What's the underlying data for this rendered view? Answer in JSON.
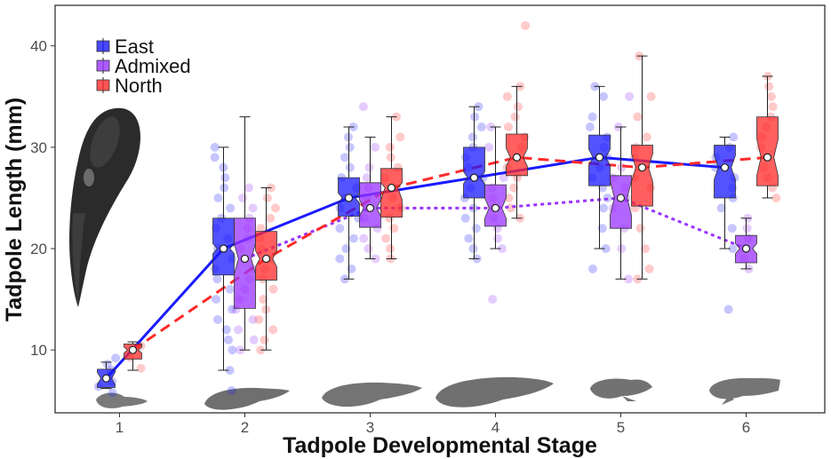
{
  "chart_data": {
    "type": "box",
    "xlabel": "Tadpole Developmental Stage",
    "ylabel": "Tadpole Length (mm)",
    "categories": [
      "1",
      "2",
      "3",
      "4",
      "5",
      "6"
    ],
    "ylim": [
      3.8,
      44.0
    ],
    "yticks": [
      10,
      20,
      30,
      40
    ],
    "grid": false,
    "legend_position": "top-left",
    "series": [
      {
        "name": "East",
        "color": "#1a1aff",
        "line_style": "solid",
        "boxes": [
          {
            "stage": 1,
            "min": 6.2,
            "q1": 6.3,
            "median": 7.2,
            "q3": 8.1,
            "max": 8.8,
            "notch_lo": 6.6,
            "notch_hi": 7.8
          },
          {
            "stage": 2,
            "min": 8,
            "q1": 17.4,
            "median": 20,
            "q3": 23,
            "max": 30,
            "notch_lo": 19.5,
            "notch_hi": 20.5
          },
          {
            "stage": 3,
            "min": 17,
            "q1": 23.2,
            "median": 25,
            "q3": 27,
            "max": 32,
            "notch_lo": 24.5,
            "notch_hi": 25.5
          },
          {
            "stage": 4,
            "min": 19,
            "q1": 25,
            "median": 27,
            "q3": 30,
            "max": 34,
            "notch_lo": 26.4,
            "notch_hi": 27.6
          },
          {
            "stage": 5,
            "min": 20,
            "q1": 26.2,
            "median": 29,
            "q3": 31.2,
            "max": 36,
            "notch_lo": 28.2,
            "notch_hi": 29.8
          },
          {
            "stage": 6,
            "min": 20,
            "q1": 25,
            "median": 28,
            "q3": 30.2,
            "max": 31,
            "notch_lo": 26.8,
            "notch_hi": 29.2
          }
        ],
        "points": [
          [
            1,
            5.8
          ],
          [
            1,
            6.4
          ],
          [
            1,
            6.9
          ],
          [
            1,
            7.4
          ],
          [
            1,
            8
          ],
          [
            1,
            8.6
          ],
          [
            1,
            9.2
          ],
          [
            2,
            6
          ],
          [
            2,
            8
          ],
          [
            2,
            10
          ],
          [
            2,
            11
          ],
          [
            2,
            12
          ],
          [
            2,
            13
          ],
          [
            2,
            14
          ],
          [
            2,
            15
          ],
          [
            2,
            16
          ],
          [
            2,
            17
          ],
          [
            2,
            18
          ],
          [
            2,
            19
          ],
          [
            2,
            20
          ],
          [
            2,
            21
          ],
          [
            2,
            22
          ],
          [
            2,
            23
          ],
          [
            2,
            24
          ],
          [
            2,
            25
          ],
          [
            2,
            26
          ],
          [
            2,
            27
          ],
          [
            2,
            28
          ],
          [
            2,
            29
          ],
          [
            2,
            30
          ],
          [
            3,
            17
          ],
          [
            3,
            18
          ],
          [
            3,
            19
          ],
          [
            3,
            20
          ],
          [
            3,
            21
          ],
          [
            3,
            22
          ],
          [
            3,
            23
          ],
          [
            3,
            24
          ],
          [
            3,
            25
          ],
          [
            3,
            26
          ],
          [
            3,
            27
          ],
          [
            3,
            28
          ],
          [
            3,
            29
          ],
          [
            3,
            30
          ],
          [
            3,
            31
          ],
          [
            3,
            32
          ],
          [
            4,
            19
          ],
          [
            4,
            20
          ],
          [
            4,
            21
          ],
          [
            4,
            22
          ],
          [
            4,
            23
          ],
          [
            4,
            24
          ],
          [
            4,
            25
          ],
          [
            4,
            26
          ],
          [
            4,
            27
          ],
          [
            4,
            28
          ],
          [
            4,
            29
          ],
          [
            4,
            30
          ],
          [
            4,
            31
          ],
          [
            4,
            32
          ],
          [
            4,
            33
          ],
          [
            4,
            34
          ],
          [
            5,
            18
          ],
          [
            5,
            20
          ],
          [
            5,
            22
          ],
          [
            5,
            24
          ],
          [
            5,
            25
          ],
          [
            5,
            26
          ],
          [
            5,
            27
          ],
          [
            5,
            28
          ],
          [
            5,
            29
          ],
          [
            5,
            30
          ],
          [
            5,
            31
          ],
          [
            5,
            32
          ],
          [
            5,
            33
          ],
          [
            5,
            35
          ],
          [
            5,
            36
          ],
          [
            6,
            14
          ],
          [
            6,
            20
          ],
          [
            6,
            22
          ],
          [
            6,
            24
          ],
          [
            6,
            25
          ],
          [
            6,
            26
          ],
          [
            6,
            27
          ],
          [
            6,
            28
          ],
          [
            6,
            29
          ],
          [
            6,
            30
          ],
          [
            6,
            31
          ]
        ],
        "trend": [
          [
            1,
            7.2
          ],
          [
            2,
            20
          ],
          [
            3,
            25
          ],
          [
            4,
            27
          ],
          [
            5,
            29
          ],
          [
            6,
            28
          ]
        ]
      },
      {
        "name": "Admixed",
        "color": "#9933ff",
        "line_style": "dotted",
        "boxes": [
          {
            "stage": 2,
            "min": 10,
            "q1": 14.1,
            "median": 19,
            "q3": 23,
            "max": 33,
            "notch_lo": 17.5,
            "notch_hi": 20.5
          },
          {
            "stage": 3,
            "min": 19,
            "q1": 22.1,
            "median": 24,
            "q3": 26.5,
            "max": 31,
            "notch_lo": 23.2,
            "notch_hi": 24.8
          },
          {
            "stage": 4,
            "min": 20,
            "q1": 22.2,
            "median": 24,
            "q3": 26.3,
            "max": 32,
            "notch_lo": 23,
            "notch_hi": 25
          },
          {
            "stage": 5,
            "min": 17,
            "q1": 22,
            "median": 25,
            "q3": 27.2,
            "max": 32,
            "notch_lo": 23.3,
            "notch_hi": 26.7
          },
          {
            "stage": 6,
            "min": 18,
            "q1": 18.6,
            "median": 20,
            "q3": 21.3,
            "max": 23,
            "notch_lo": 19.5,
            "notch_hi": 20.5
          }
        ],
        "points": [
          [
            2,
            10
          ],
          [
            2,
            11
          ],
          [
            2,
            12
          ],
          [
            2,
            13
          ],
          [
            2,
            14
          ],
          [
            2,
            15
          ],
          [
            2,
            16
          ],
          [
            2,
            17
          ],
          [
            2,
            18
          ],
          [
            2,
            19
          ],
          [
            2,
            20
          ],
          [
            2,
            21
          ],
          [
            2,
            22
          ],
          [
            2,
            23
          ],
          [
            2,
            24
          ],
          [
            2,
            25
          ],
          [
            2,
            26
          ],
          [
            3,
            19
          ],
          [
            3,
            20
          ],
          [
            3,
            21
          ],
          [
            3,
            22
          ],
          [
            3,
            23
          ],
          [
            3,
            24
          ],
          [
            3,
            25
          ],
          [
            3,
            26
          ],
          [
            3,
            27
          ],
          [
            3,
            28
          ],
          [
            3,
            30
          ],
          [
            3,
            34
          ],
          [
            4,
            15
          ],
          [
            4,
            20
          ],
          [
            4,
            21
          ],
          [
            4,
            22
          ],
          [
            4,
            23
          ],
          [
            4,
            24
          ],
          [
            4,
            25
          ],
          [
            4,
            26
          ],
          [
            4,
            27
          ],
          [
            4,
            30
          ],
          [
            4,
            32
          ],
          [
            5,
            17
          ],
          [
            5,
            20
          ],
          [
            5,
            22
          ],
          [
            5,
            24
          ],
          [
            5,
            25
          ],
          [
            5,
            26
          ],
          [
            5,
            27
          ],
          [
            5,
            28
          ],
          [
            5,
            32
          ],
          [
            5,
            35
          ],
          [
            6,
            18
          ],
          [
            6,
            19
          ],
          [
            6,
            20
          ],
          [
            6,
            21
          ],
          [
            6,
            22
          ],
          [
            6,
            23
          ]
        ],
        "trend": [
          [
            2,
            19
          ],
          [
            3,
            24
          ],
          [
            4,
            24
          ],
          [
            5,
            25
          ],
          [
            6,
            20
          ]
        ]
      },
      {
        "name": "North",
        "color": "#ff2a2a",
        "line_style": "dashed",
        "boxes": [
          {
            "stage": 1,
            "min": 8,
            "q1": 9.1,
            "median": 10,
            "q3": 10.6,
            "max": 10.8,
            "notch_lo": 9.7,
            "notch_hi": 10.3
          },
          {
            "stage": 2,
            "min": 10,
            "q1": 16.9,
            "median": 19,
            "q3": 21.7,
            "max": 26,
            "notch_lo": 18.2,
            "notch_hi": 19.8
          },
          {
            "stage": 3,
            "min": 19,
            "q1": 23.1,
            "median": 26,
            "q3": 27.9,
            "max": 33,
            "notch_lo": 24.8,
            "notch_hi": 26.5
          },
          {
            "stage": 4,
            "min": 23,
            "q1": 27.2,
            "median": 29,
            "q3": 31.3,
            "max": 36,
            "notch_lo": 28.1,
            "notch_hi": 29.9
          },
          {
            "stage": 5,
            "min": 17,
            "q1": 24.2,
            "median": 28,
            "q3": 30.2,
            "max": 39,
            "notch_lo": 26.6,
            "notch_hi": 29.4
          },
          {
            "stage": 6,
            "min": 25,
            "q1": 26.2,
            "median": 29,
            "q3": 33,
            "max": 37,
            "notch_lo": 27.2,
            "notch_hi": 30.8
          }
        ],
        "points": [
          [
            1,
            8.2
          ],
          [
            1,
            9.3
          ],
          [
            1,
            10.4
          ],
          [
            2,
            10
          ],
          [
            2,
            11
          ],
          [
            2,
            12
          ],
          [
            2,
            13
          ],
          [
            2,
            14
          ],
          [
            2,
            15
          ],
          [
            2,
            16
          ],
          [
            2,
            17
          ],
          [
            2,
            18
          ],
          [
            2,
            19
          ],
          [
            2,
            20
          ],
          [
            2,
            21
          ],
          [
            2,
            22
          ],
          [
            2,
            23
          ],
          [
            2,
            24
          ],
          [
            2,
            25
          ],
          [
            2,
            26
          ],
          [
            3,
            19
          ],
          [
            3,
            20
          ],
          [
            3,
            21
          ],
          [
            3,
            22
          ],
          [
            3,
            23
          ],
          [
            3,
            24
          ],
          [
            3,
            25
          ],
          [
            3,
            26
          ],
          [
            3,
            27
          ],
          [
            3,
            28
          ],
          [
            3,
            29
          ],
          [
            3,
            30
          ],
          [
            3,
            31
          ],
          [
            3,
            33
          ],
          [
            4,
            23
          ],
          [
            4,
            24
          ],
          [
            4,
            25
          ],
          [
            4,
            26
          ],
          [
            4,
            27
          ],
          [
            4,
            28
          ],
          [
            4,
            29
          ],
          [
            4,
            30
          ],
          [
            4,
            31
          ],
          [
            4,
            32
          ],
          [
            4,
            33
          ],
          [
            4,
            34
          ],
          [
            4,
            35
          ],
          [
            4,
            36
          ],
          [
            4,
            42
          ],
          [
            5,
            17
          ],
          [
            5,
            18
          ],
          [
            5,
            20
          ],
          [
            5,
            22
          ],
          [
            5,
            24
          ],
          [
            5,
            26
          ],
          [
            5,
            27
          ],
          [
            5,
            28
          ],
          [
            5,
            29
          ],
          [
            5,
            30
          ],
          [
            5,
            31
          ],
          [
            5,
            33
          ],
          [
            5,
            35
          ],
          [
            5,
            39
          ],
          [
            6,
            25
          ],
          [
            6,
            26
          ],
          [
            6,
            27
          ],
          [
            6,
            28
          ],
          [
            6,
            29
          ],
          [
            6,
            30
          ],
          [
            6,
            31
          ],
          [
            6,
            32
          ],
          [
            6,
            33
          ],
          [
            6,
            34
          ],
          [
            6,
            35
          ],
          [
            6,
            36
          ],
          [
            6,
            37
          ]
        ],
        "trend": [
          [
            1,
            10
          ],
          [
            2,
            19
          ],
          [
            3,
            26
          ],
          [
            4,
            29
          ],
          [
            5,
            28
          ],
          [
            6,
            29
          ]
        ]
      }
    ]
  }
}
